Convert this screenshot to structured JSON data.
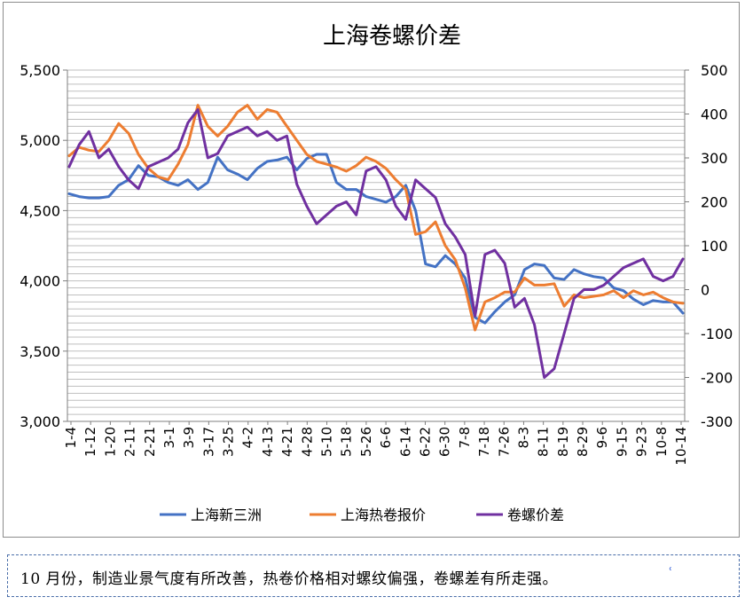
{
  "caption": {
    "text": "10 月份，制造业景气度有所改善，热卷价格相对螺纹偏强，卷螺差有所走强。",
    "mark": "ʿ"
  },
  "chart_data": {
    "type": "line",
    "title": "上海卷螺价差",
    "xlabel": "",
    "ylabel": "",
    "ylim": [
      3000,
      5500
    ],
    "y2lim": [
      -300,
      500
    ],
    "y_ticks": [
      "3,000",
      "3,500",
      "4,000",
      "4,500",
      "5,000",
      "5,500"
    ],
    "y2_ticks": [
      "-300",
      "-200",
      "-100",
      "0",
      "100",
      "200",
      "300",
      "400",
      "500"
    ],
    "x_tick_labels": [
      "1-4",
      "1-12",
      "1-20",
      "2-11",
      "2-21",
      "3-1",
      "3-9",
      "3-17",
      "3-25",
      "4-2",
      "4-13",
      "4-21",
      "4-28",
      "5-10",
      "5-18",
      "5-26",
      "6-6",
      "6-14",
      "6-22",
      "6-30",
      "7-8",
      "7-18",
      "7-26",
      "8-3",
      "8-11",
      "8-19",
      "8-29",
      "9-6",
      "9-15",
      "9-23",
      "10-8",
      "10-14"
    ],
    "grid": true,
    "legend_position": "bottom",
    "colors": {
      "shanghai_xinsanzhou": "#4472c4",
      "shanghai_hot_coil": "#ed7d31",
      "spread": "#7030a0"
    },
    "series": [
      {
        "name": "上海新三洲",
        "axis": "left",
        "color": "#4472c4",
        "values": [
          4620,
          4600,
          4590,
          4590,
          4600,
          4680,
          4720,
          4820,
          4750,
          4740,
          4700,
          4680,
          4720,
          4650,
          4700,
          4880,
          4790,
          4760,
          4720,
          4800,
          4850,
          4860,
          4880,
          4790,
          4870,
          4900,
          4900,
          4700,
          4650,
          4650,
          4600,
          4580,
          4560,
          4600,
          4680,
          4500,
          4120,
          4100,
          4180,
          4120,
          4020,
          3740,
          3700,
          3780,
          3850,
          3900,
          4080,
          4120,
          4110,
          4020,
          4010,
          4080,
          4050,
          4030,
          4020,
          3950,
          3930,
          3870,
          3830,
          3860,
          3850,
          3850,
          3770
        ]
      },
      {
        "name": "上海热卷报价",
        "axis": "left",
        "color": "#ed7d31",
        "values": [
          4890,
          4950,
          4930,
          4920,
          5000,
          5120,
          5050,
          4900,
          4800,
          4740,
          4720,
          4830,
          4970,
          5250,
          5100,
          5030,
          5100,
          5200,
          5250,
          5150,
          5220,
          5200,
          5100,
          5000,
          4900,
          4850,
          4830,
          4810,
          4780,
          4820,
          4880,
          4850,
          4800,
          4720,
          4650,
          4330,
          4350,
          4420,
          4250,
          4150,
          3950,
          3650,
          3850,
          3880,
          3920,
          3920,
          4020,
          3970,
          3970,
          3980,
          3820,
          3900,
          3880,
          3890,
          3900,
          3930,
          3880,
          3930,
          3900,
          3920,
          3880,
          3850,
          3840
        ]
      },
      {
        "name": "卷螺价差",
        "axis": "right",
        "color": "#7030a0",
        "values": [
          280,
          330,
          360,
          300,
          320,
          280,
          250,
          230,
          280,
          290,
          300,
          320,
          380,
          410,
          300,
          310,
          350,
          360,
          370,
          350,
          360,
          340,
          350,
          240,
          190,
          150,
          170,
          190,
          200,
          170,
          270,
          280,
          250,
          190,
          160,
          250,
          230,
          210,
          150,
          120,
          80,
          -60,
          80,
          90,
          60,
          -40,
          -20,
          -80,
          -200,
          -180,
          -100,
          -20,
          0,
          0,
          10,
          30,
          50,
          60,
          70,
          30,
          20,
          30,
          70
        ]
      }
    ]
  }
}
